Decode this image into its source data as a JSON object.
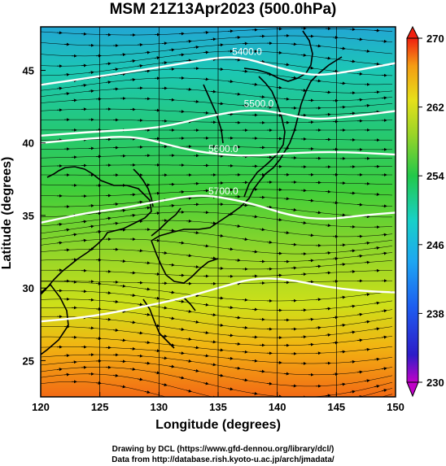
{
  "chart_data": {
    "type": "heatmap",
    "title": "MSM 21Z13Apr2023 (500.0hPa)",
    "xlabel": "Longitude (degrees)",
    "ylabel": "Latitude  (degrees)",
    "xlim": [
      120,
      150
    ],
    "ylim": [
      22.5,
      48
    ],
    "xticks": [
      120,
      125,
      130,
      135,
      140,
      145,
      150
    ],
    "xtick_labels": [
      "120",
      "125",
      "130",
      "135",
      "140",
      "145",
      "150"
    ],
    "yticks": [
      25,
      30,
      35,
      40,
      45
    ],
    "ytick_labels": [
      "25",
      "30",
      "35",
      "40",
      "45"
    ],
    "colorbar": {
      "min": 230,
      "max": 270,
      "ticks": [
        230,
        238,
        246,
        254,
        262,
        270
      ],
      "tick_labels": [
        "230",
        "238",
        "246",
        "254",
        "262",
        "270"
      ]
    },
    "contours": [
      {
        "label": "5400.0",
        "points": [
          [
            120,
            44
          ],
          [
            125,
            44.6
          ],
          [
            130,
            45.2
          ],
          [
            135,
            45.9
          ],
          [
            137,
            45.9
          ],
          [
            140,
            45.2
          ],
          [
            143,
            44.6
          ],
          [
            146,
            44.9
          ],
          [
            150,
            45.5
          ]
        ]
      },
      {
        "label": "5500.0",
        "points": [
          [
            120,
            40.5
          ],
          [
            125,
            40.8
          ],
          [
            130,
            41.0
          ],
          [
            135,
            42.0
          ],
          [
            138,
            42.3
          ],
          [
            140,
            42.1
          ],
          [
            143,
            41.6
          ],
          [
            146,
            41.8
          ],
          [
            150,
            42.2
          ]
        ]
      },
      {
        "label": "5600.0",
        "points": [
          [
            120,
            40.0
          ],
          [
            124,
            40.3
          ],
          [
            128,
            40.5
          ],
          [
            132,
            39.6
          ],
          [
            135,
            39.2
          ],
          [
            138,
            39.1
          ],
          [
            141,
            39.3
          ],
          [
            145,
            39.4
          ],
          [
            150,
            39.2
          ]
        ]
      },
      {
        "label": "5700.0",
        "points": [
          [
            120,
            34.5
          ],
          [
            124,
            35.2
          ],
          [
            127,
            35.5
          ],
          [
            130,
            36.0
          ],
          [
            133,
            36.4
          ],
          [
            135,
            36.3
          ],
          [
            138,
            35.8
          ],
          [
            141,
            35.0
          ],
          [
            144,
            34.7
          ],
          [
            147,
            35.0
          ],
          [
            150,
            35.2
          ]
        ]
      },
      {
        "label": "",
        "points": [
          [
            120,
            27.7
          ],
          [
            124,
            28.0
          ],
          [
            128,
            28.6
          ],
          [
            132,
            29.3
          ],
          [
            135,
            30.0
          ],
          [
            138,
            30.7
          ],
          [
            141,
            30.6
          ],
          [
            144,
            30.1
          ],
          [
            147,
            29.8
          ],
          [
            150,
            29.7
          ]
        ]
      }
    ],
    "temperature_field": "increases southward from about 243 at 48N to about 266 at 23N",
    "wind": "westerly streamlines with arrows across the domain"
  },
  "footer": {
    "line1": "Drawing by DCL (https://www.gfd-dennou.org/library/dcl/)",
    "line2": "Data from http://database.rish.kyoto-u.ac.jp/arch/jmadata/"
  }
}
